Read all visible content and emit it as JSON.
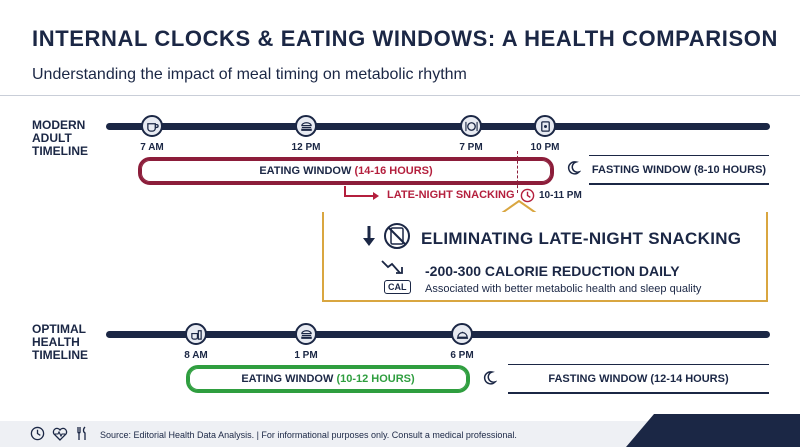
{
  "title": "INTERNAL CLOCKS & EATING WINDOWS: A HEALTH COMPARISON",
  "subtitle": "Understanding the impact of meal timing on metabolic rhythm",
  "modern": {
    "label_line1": "MODERN",
    "label_line2": "ADULT",
    "label_line3": "TIMELINE",
    "times": [
      "7 AM",
      "12 PM",
      "7 PM",
      "10 PM"
    ],
    "icons": [
      "coffee-cup-icon",
      "sandwich-icon",
      "dinner-plate-icon",
      "snack-bag-icon"
    ],
    "eating_prefix": "EATING WINDOW",
    "eating_hours": "(14-16 HOURS)",
    "fasting": "FASTING WINDOW (8-10 HOURS)",
    "snacking_label": "LATE-NIGHT SNACKING",
    "snacking_time": "10-11 PM"
  },
  "callout": {
    "heading": "ELIMINATING LATE-NIGHT SNACKING",
    "reduction": "-200-300 CALORIE REDUCTION DAILY",
    "cal_badge": "CAL",
    "note": "Associated with better metabolic health and sleep quality"
  },
  "optimal": {
    "label_line1": "OPTIMAL",
    "label_line2": "HEALTH",
    "label_line3": "TIMELINE",
    "times": [
      "8 AM",
      "1 PM",
      "6 PM"
    ],
    "icons": [
      "breakfast-icon",
      "sandwich-icon",
      "covered-dish-icon"
    ],
    "eating_prefix": "EATING WINDOW",
    "eating_hours": "(10-12 HOURS)",
    "fasting": "FASTING WINDOW (12-14 HOURS)"
  },
  "footer": {
    "source": "Source: Editorial Health Data Analysis. | For informational purposes only. Consult a medical professional."
  },
  "colors": {
    "navy": "#1b2745",
    "maroon": "#8c1d3a",
    "red": "#b41f3d",
    "orange": "#d9822b",
    "green": "#2f9e3f",
    "gold": "#d9a640"
  }
}
